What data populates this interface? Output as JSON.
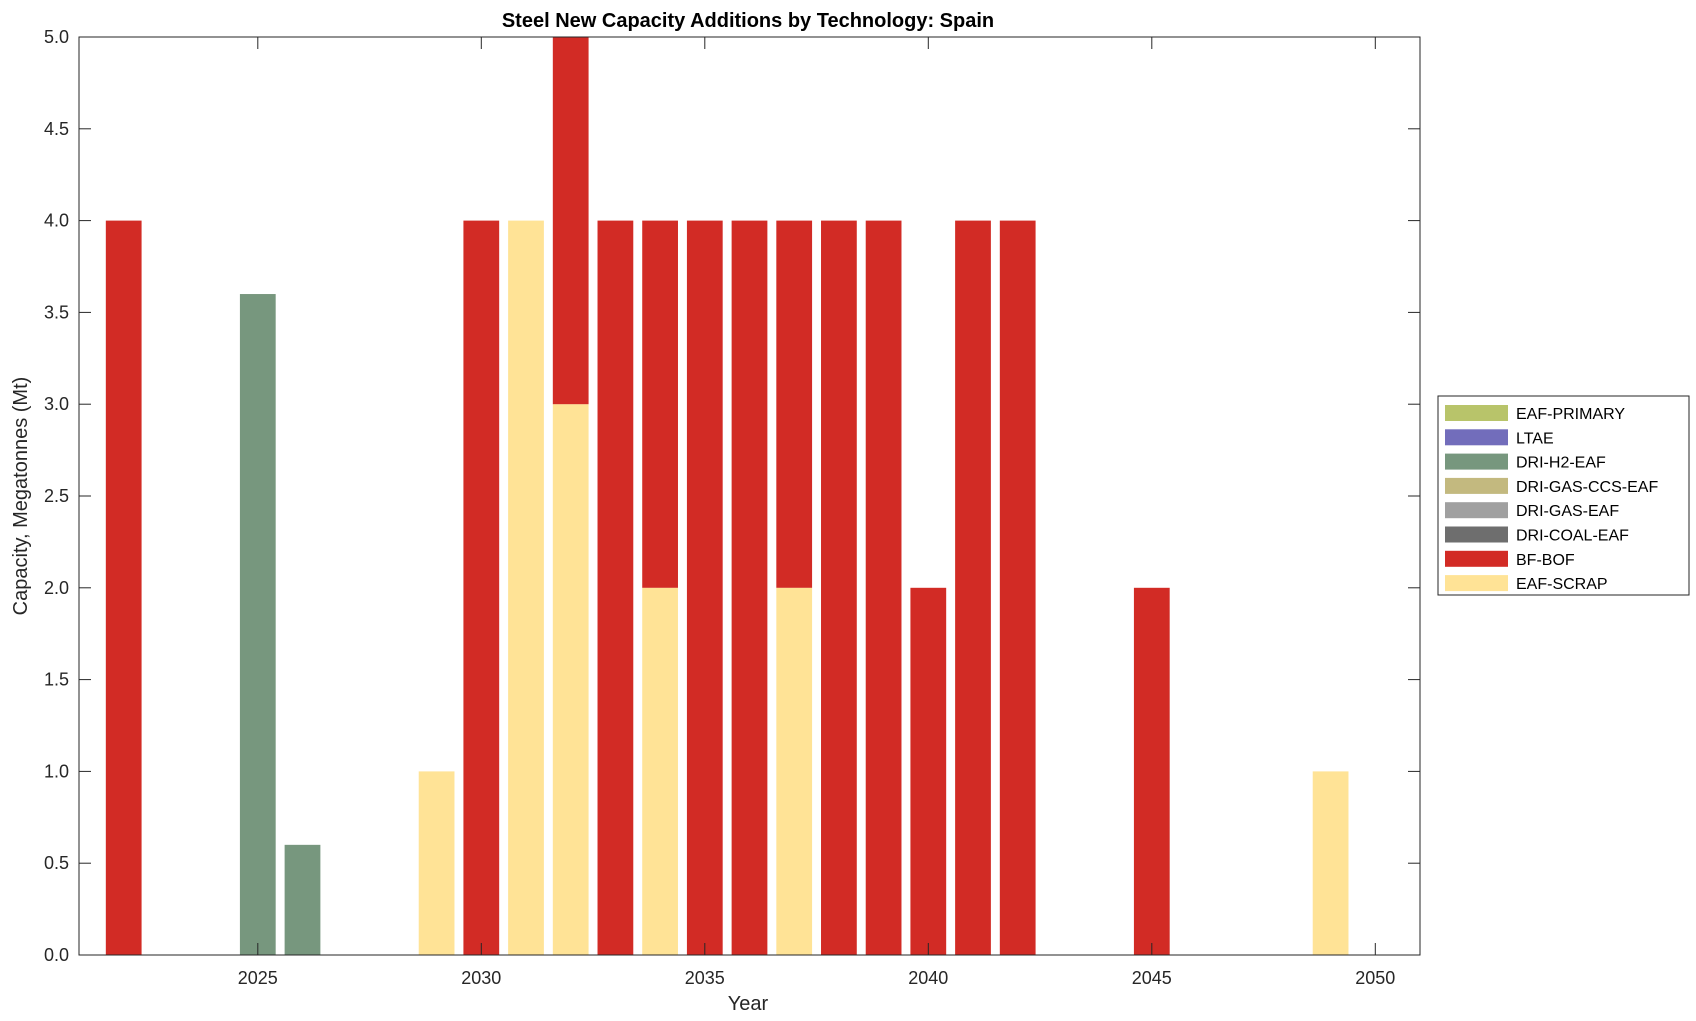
{
  "chart_data": {
    "type": "bar",
    "stacked": true,
    "title": "Steel New Capacity Additions by Technology: Spain",
    "xlabel": "Year",
    "ylabel": "Capacity, Megatonnes (Mt)",
    "xlim": [
      2021,
      2051
    ],
    "ylim": [
      0,
      5
    ],
    "xticks": [
      2025,
      2030,
      2035,
      2040,
      2045,
      2050
    ],
    "yticks": [
      "0.0",
      "0.5",
      "1.0",
      "1.5",
      "2.0",
      "2.5",
      "3.0",
      "3.5",
      "4.0",
      "4.5",
      "5.0"
    ],
    "grid": false,
    "legend_position": "right",
    "x": [
      2022,
      2023,
      2024,
      2025,
      2026,
      2027,
      2028,
      2029,
      2030,
      2031,
      2032,
      2033,
      2034,
      2035,
      2036,
      2037,
      2038,
      2039,
      2040,
      2041,
      2042,
      2043,
      2044,
      2045,
      2046,
      2047,
      2048,
      2049,
      2050
    ],
    "series": [
      {
        "name": "EAF-SCRAP",
        "color": "#ffe396",
        "values": [
          0,
          0,
          0,
          0,
          0,
          0,
          0,
          1.0,
          0,
          4.0,
          3.0,
          0,
          2.0,
          0,
          0,
          2.0,
          0,
          0,
          0,
          0,
          0,
          0,
          0,
          0,
          0,
          0,
          0,
          1.0,
          0
        ]
      },
      {
        "name": "BF-BOF",
        "color": "#d22b25",
        "values": [
          4.0,
          0,
          0,
          0,
          0,
          0,
          0,
          0,
          4.0,
          0,
          2.0,
          4.0,
          2.0,
          4.0,
          4.0,
          2.0,
          4.0,
          4.0,
          2.0,
          4.0,
          4.0,
          0,
          0,
          2.0,
          0,
          0,
          0,
          0,
          0
        ]
      },
      {
        "name": "DRI-COAL-EAF",
        "color": "#6e6e6e",
        "values": [
          0,
          0,
          0,
          0,
          0,
          0,
          0,
          0,
          0,
          0,
          0,
          0,
          0,
          0,
          0,
          0,
          0,
          0,
          0,
          0,
          0,
          0,
          0,
          0,
          0,
          0,
          0,
          0,
          0
        ]
      },
      {
        "name": "DRI-GAS-EAF",
        "color": "#a0a0a0",
        "values": [
          0,
          0,
          0,
          0,
          0,
          0,
          0,
          0,
          0,
          0,
          0,
          0,
          0,
          0,
          0,
          0,
          0,
          0,
          0,
          0,
          0,
          0,
          0,
          0,
          0,
          0,
          0,
          0,
          0
        ]
      },
      {
        "name": "DRI-GAS-CCS-EAF",
        "color": "#c3b97f",
        "values": [
          0,
          0,
          0,
          0,
          0,
          0,
          0,
          0,
          0,
          0,
          0,
          0,
          0,
          0,
          0,
          0,
          0,
          0,
          0,
          0,
          0,
          0,
          0,
          0,
          0,
          0,
          0,
          0,
          0
        ]
      },
      {
        "name": "DRI-H2-EAF",
        "color": "#77977e",
        "values": [
          0,
          0,
          0,
          3.6,
          0.6,
          0,
          0,
          0,
          0,
          0,
          0,
          0,
          0,
          0,
          0,
          0,
          0,
          0,
          0,
          0,
          0,
          0,
          0,
          0,
          0,
          0,
          0,
          0,
          0
        ]
      },
      {
        "name": "LTAE",
        "color": "#726dbb",
        "values": [
          0,
          0,
          0,
          0,
          0,
          0,
          0,
          0,
          0,
          0,
          0,
          0,
          0,
          0,
          0,
          0,
          0,
          0,
          0,
          0,
          0,
          0,
          0,
          0,
          0,
          0,
          0,
          0,
          0
        ]
      },
      {
        "name": "EAF-PRIMARY",
        "color": "#b8c46a",
        "values": [
          0,
          0,
          0,
          0,
          0,
          0,
          0,
          0,
          0,
          0,
          0,
          0,
          0,
          0,
          0,
          0,
          0,
          0,
          0,
          0,
          0,
          0,
          0,
          0,
          0,
          0,
          0,
          0,
          0
        ]
      }
    ],
    "legend_order": [
      "EAF-PRIMARY",
      "LTAE",
      "DRI-H2-EAF",
      "DRI-GAS-CCS-EAF",
      "DRI-GAS-EAF",
      "DRI-COAL-EAF",
      "BF-BOF",
      "EAF-SCRAP"
    ]
  }
}
